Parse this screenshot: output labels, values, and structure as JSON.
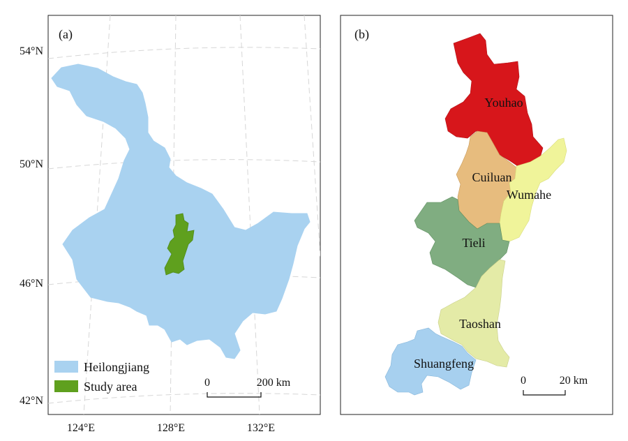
{
  "panel_a": {
    "label": "(a)",
    "lat_labels": [
      "54°N",
      "50°N",
      "46°N",
      "42°N"
    ],
    "lon_labels": [
      "124°E",
      "128°E",
      "132°E"
    ],
    "legend": [
      {
        "label": "Heilongjiang",
        "color": "#a9d2f0"
      },
      {
        "label": "Study area",
        "color": "#5fa01e"
      }
    ],
    "scale": {
      "start": "0",
      "end": "200 km"
    }
  },
  "panel_b": {
    "label": "(b)",
    "regions": [
      {
        "name": "Youhao",
        "color": "#d7161b"
      },
      {
        "name": "Cuiluan",
        "color": "#e7bc7e"
      },
      {
        "name": "Wumahe",
        "color": "#f0f49a"
      },
      {
        "name": "Tieli",
        "color": "#80ad81"
      },
      {
        "name": "Taoshan",
        "color": "#e4eba7"
      },
      {
        "name": "Shuangfeng",
        "color": "#a7d0ef"
      }
    ],
    "scale": {
      "start": "0",
      "end": "20 km"
    }
  }
}
